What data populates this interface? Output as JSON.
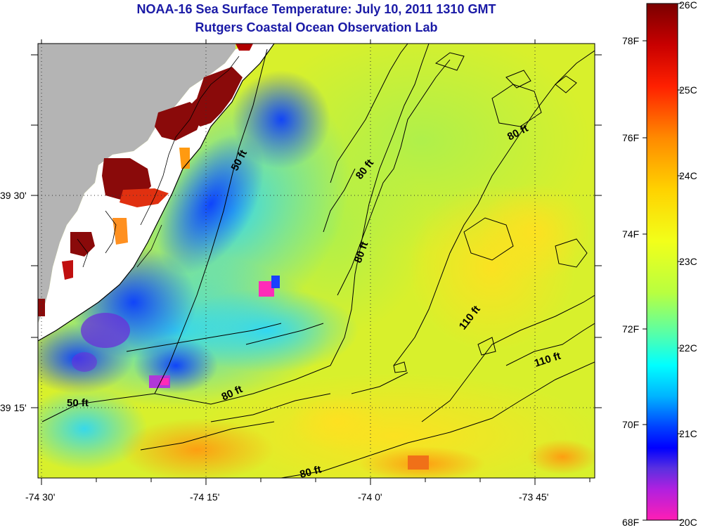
{
  "header": {
    "title": "NOAA-16 Sea Surface Temperature:  July 10, 2011 1310 GMT",
    "subtitle": "Rutgers Coastal Ocean Observation Lab"
  },
  "map": {
    "lon_ticks": [
      "-74 30'",
      "-74 15'",
      "-74 0'",
      "-73 45'"
    ],
    "lat_ticks": [
      "39 30'",
      "39 15'"
    ],
    "contour_labels": [
      "50 ft",
      "50 ft",
      "80 ft",
      "80 ft",
      "80 ft",
      "80 ft",
      "80 ft",
      "110 ft",
      "110 ft"
    ],
    "land_color": "#b4b4b4"
  },
  "colorbar": {
    "left_labels": [
      "78F",
      "76F",
      "74F",
      "72F",
      "70F",
      "68F"
    ],
    "right_labels": [
      "26C",
      "25C",
      "24C",
      "23C",
      "22C",
      "21C",
      "20C"
    ]
  }
}
